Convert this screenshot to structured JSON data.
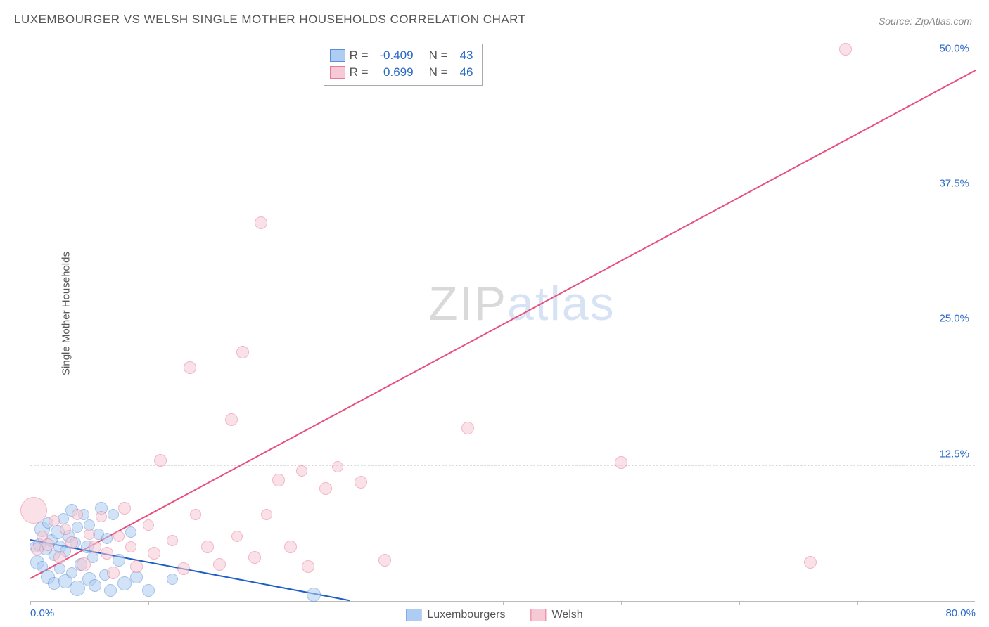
{
  "title": "LUXEMBOURGER VS WELSH SINGLE MOTHER HOUSEHOLDS CORRELATION CHART",
  "source": "Source: ZipAtlas.com",
  "ylabel": "Single Mother Households",
  "watermark": {
    "part1": "ZIP",
    "part2": "atlas"
  },
  "chart": {
    "type": "scatter",
    "xlim": [
      0,
      80
    ],
    "ylim": [
      0,
      52
    ],
    "x_ticks": [
      0,
      10,
      20,
      30,
      40,
      50,
      60,
      70,
      80
    ],
    "x_tick_labels": {
      "0": "0.0%",
      "80": "80.0%"
    },
    "y_ticks": [
      12.5,
      25,
      37.5,
      50
    ],
    "y_tick_labels": [
      "12.5%",
      "25.0%",
      "37.5%",
      "50.0%"
    ],
    "grid_color": "#dddddd",
    "axis_color": "#bbbbbb",
    "background_color": "#ffffff",
    "label_color": "#2968c8",
    "label_fontsize": 15,
    "title_color": "#555555",
    "title_fontsize": 17,
    "colors": {
      "blue_fill": "#aecdf2",
      "blue_stroke": "#5a8fd6",
      "blue_line": "#1f5fc4",
      "pink_fill": "#f7c9d4",
      "pink_stroke": "#e77a9a",
      "pink_line": "#e84f7d"
    },
    "marker_opacity": 0.55,
    "line_width": 2,
    "series": [
      {
        "name": "Luxembourgers",
        "key": "blue",
        "trend": {
          "x1": 0,
          "y1": 5.6,
          "x2": 27,
          "y2": 0
        },
        "points": [
          {
            "x": 0.4,
            "y": 5.0,
            "r": 7
          },
          {
            "x": 0.6,
            "y": 3.6,
            "r": 9
          },
          {
            "x": 0.8,
            "y": 5.2,
            "r": 8
          },
          {
            "x": 1.0,
            "y": 6.6,
            "r": 10
          },
          {
            "x": 1.0,
            "y": 3.2,
            "r": 7
          },
          {
            "x": 1.3,
            "y": 4.8,
            "r": 8
          },
          {
            "x": 1.5,
            "y": 2.2,
            "r": 9
          },
          {
            "x": 1.5,
            "y": 7.2,
            "r": 7
          },
          {
            "x": 1.8,
            "y": 5.6,
            "r": 8
          },
          {
            "x": 2.0,
            "y": 1.6,
            "r": 8
          },
          {
            "x": 2.0,
            "y": 4.2,
            "r": 7
          },
          {
            "x": 2.3,
            "y": 6.4,
            "r": 9
          },
          {
            "x": 2.5,
            "y": 3.0,
            "r": 7
          },
          {
            "x": 2.5,
            "y": 5.0,
            "r": 8
          },
          {
            "x": 2.8,
            "y": 7.6,
            "r": 7
          },
          {
            "x": 3.0,
            "y": 1.8,
            "r": 9
          },
          {
            "x": 3.0,
            "y": 4.6,
            "r": 7
          },
          {
            "x": 3.3,
            "y": 6.0,
            "r": 8
          },
          {
            "x": 3.5,
            "y": 2.6,
            "r": 7
          },
          {
            "x": 3.5,
            "y": 8.4,
            "r": 8
          },
          {
            "x": 3.8,
            "y": 5.4,
            "r": 7
          },
          {
            "x": 4.0,
            "y": 1.2,
            "r": 10
          },
          {
            "x": 4.0,
            "y": 6.8,
            "r": 7
          },
          {
            "x": 4.3,
            "y": 3.4,
            "r": 8
          },
          {
            "x": 4.5,
            "y": 8.0,
            "r": 7
          },
          {
            "x": 4.8,
            "y": 5.0,
            "r": 8
          },
          {
            "x": 5.0,
            "y": 2.0,
            "r": 9
          },
          {
            "x": 5.0,
            "y": 7.0,
            "r": 7
          },
          {
            "x": 5.3,
            "y": 4.0,
            "r": 7
          },
          {
            "x": 5.5,
            "y": 1.4,
            "r": 8
          },
          {
            "x": 5.8,
            "y": 6.2,
            "r": 7
          },
          {
            "x": 6.0,
            "y": 8.6,
            "r": 8
          },
          {
            "x": 6.3,
            "y": 2.4,
            "r": 7
          },
          {
            "x": 6.5,
            "y": 5.8,
            "r": 7
          },
          {
            "x": 6.8,
            "y": 1.0,
            "r": 8
          },
          {
            "x": 7.0,
            "y": 8.0,
            "r": 7
          },
          {
            "x": 7.5,
            "y": 3.8,
            "r": 8
          },
          {
            "x": 8.0,
            "y": 1.6,
            "r": 9
          },
          {
            "x": 8.5,
            "y": 6.4,
            "r": 7
          },
          {
            "x": 9.0,
            "y": 2.2,
            "r": 8
          },
          {
            "x": 10.0,
            "y": 1.0,
            "r": 8
          },
          {
            "x": 12.0,
            "y": 2.0,
            "r": 7
          },
          {
            "x": 24.0,
            "y": 0.6,
            "r": 9
          }
        ]
      },
      {
        "name": "Welsh",
        "key": "pink",
        "trend": {
          "x1": 0,
          "y1": 2.0,
          "x2": 80,
          "y2": 49
        },
        "points": [
          {
            "x": 0.3,
            "y": 8.4,
            "r": 18
          },
          {
            "x": 0.6,
            "y": 4.8,
            "r": 8
          },
          {
            "x": 1.0,
            "y": 6.0,
            "r": 7
          },
          {
            "x": 1.5,
            "y": 5.2,
            "r": 8
          },
          {
            "x": 2.0,
            "y": 7.4,
            "r": 7
          },
          {
            "x": 2.5,
            "y": 4.0,
            "r": 8
          },
          {
            "x": 3.0,
            "y": 6.6,
            "r": 7
          },
          {
            "x": 3.5,
            "y": 5.4,
            "r": 8
          },
          {
            "x": 4.0,
            "y": 8.0,
            "r": 7
          },
          {
            "x": 4.5,
            "y": 3.4,
            "r": 9
          },
          {
            "x": 5.0,
            "y": 6.2,
            "r": 7
          },
          {
            "x": 5.5,
            "y": 5.0,
            "r": 8
          },
          {
            "x": 6.0,
            "y": 7.8,
            "r": 7
          },
          {
            "x": 6.5,
            "y": 4.4,
            "r": 8
          },
          {
            "x": 7.0,
            "y": 2.6,
            "r": 8
          },
          {
            "x": 7.5,
            "y": 6.0,
            "r": 7
          },
          {
            "x": 8.0,
            "y": 8.6,
            "r": 8
          },
          {
            "x": 8.5,
            "y": 5.0,
            "r": 7
          },
          {
            "x": 9.0,
            "y": 3.2,
            "r": 8
          },
          {
            "x": 10.0,
            "y": 7.0,
            "r": 7
          },
          {
            "x": 10.5,
            "y": 4.4,
            "r": 8
          },
          {
            "x": 11.0,
            "y": 13.0,
            "r": 8
          },
          {
            "x": 12.0,
            "y": 5.6,
            "r": 7
          },
          {
            "x": 13.0,
            "y": 3.0,
            "r": 8
          },
          {
            "x": 13.5,
            "y": 21.6,
            "r": 8
          },
          {
            "x": 14.0,
            "y": 8.0,
            "r": 7
          },
          {
            "x": 15.0,
            "y": 5.0,
            "r": 8
          },
          {
            "x": 16.0,
            "y": 3.4,
            "r": 8
          },
          {
            "x": 17.0,
            "y": 16.8,
            "r": 8
          },
          {
            "x": 17.5,
            "y": 6.0,
            "r": 7
          },
          {
            "x": 18.0,
            "y": 23.0,
            "r": 8
          },
          {
            "x": 19.0,
            "y": 4.0,
            "r": 8
          },
          {
            "x": 19.5,
            "y": 35.0,
            "r": 8
          },
          {
            "x": 20.0,
            "y": 8.0,
            "r": 7
          },
          {
            "x": 21.0,
            "y": 11.2,
            "r": 8
          },
          {
            "x": 22.0,
            "y": 5.0,
            "r": 8
          },
          {
            "x": 23.0,
            "y": 12.0,
            "r": 7
          },
          {
            "x": 23.5,
            "y": 3.2,
            "r": 8
          },
          {
            "x": 25.0,
            "y": 10.4,
            "r": 8
          },
          {
            "x": 26.0,
            "y": 12.4,
            "r": 7
          },
          {
            "x": 28.0,
            "y": 11.0,
            "r": 8
          },
          {
            "x": 30.0,
            "y": 3.8,
            "r": 8
          },
          {
            "x": 37.0,
            "y": 16.0,
            "r": 8
          },
          {
            "x": 50.0,
            "y": 12.8,
            "r": 8
          },
          {
            "x": 66.0,
            "y": 3.6,
            "r": 8
          },
          {
            "x": 69.0,
            "y": 51.0,
            "r": 8
          }
        ]
      }
    ],
    "legend_stats": {
      "rows": [
        {
          "key": "blue",
          "r": "-0.409",
          "n": "43"
        },
        {
          "key": "pink",
          "r": "0.699",
          "n": "46"
        }
      ],
      "r_label": "R =",
      "n_label": "N ="
    },
    "bottom_legend": [
      {
        "key": "blue",
        "label": "Luxembourgers"
      },
      {
        "key": "pink",
        "label": "Welsh"
      }
    ]
  }
}
